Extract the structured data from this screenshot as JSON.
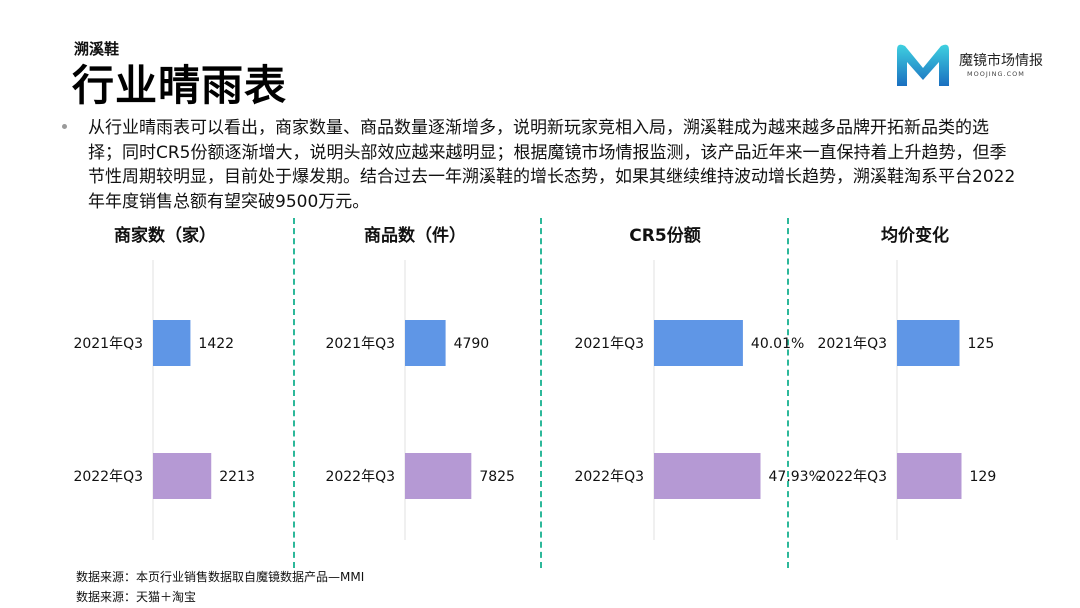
{
  "header": {
    "subtitle": "溯溪鞋",
    "title": "行业晴雨表"
  },
  "logo": {
    "name": "魔镜市场情报",
    "url_text": "MOOJING.COM"
  },
  "body": {
    "text": "从行业晴雨表可以看出，商家数量、商品数量逐渐增多，说明新玩家竞相入局，溯溪鞋成为越来越多品牌开拓新品类的选择；同时CR5份额逐渐增大，说明头部效应越来越明显；根据魔镜市场情报监测，该产品近年来一直保持着上升趋势，但季节性周期较明显，目前处于爆发期。结合过去一年溯溪鞋的增长态势，如果其继续维持波动增长趋势，溯溪鞋淘系平台2022年年度销售总额有望突破9500万元。"
  },
  "colors": {
    "bar_2021": "#5f96e6",
    "bar_2022": "#b599d4",
    "divider": "#2db89a"
  },
  "chart_data": [
    {
      "type": "bar",
      "orientation": "horizontal",
      "title": "商家数（家）",
      "categories": [
        "2021年Q3",
        "2022年Q3"
      ],
      "values": [
        1422,
        2213
      ],
      "value_labels": [
        "1422",
        "2213"
      ],
      "xlim": [
        0,
        3800
      ]
    },
    {
      "type": "bar",
      "orientation": "horizontal",
      "title": "商品数（件）",
      "categories": [
        "2021年Q3",
        "2022年Q3"
      ],
      "values": [
        4790,
        7825
      ],
      "value_labels": [
        "4790",
        "7825"
      ],
      "xlim": [
        0,
        11800
      ]
    },
    {
      "type": "bar",
      "orientation": "horizontal",
      "title": "CR5份额",
      "categories": [
        "2021年Q3",
        "2022年Q3"
      ],
      "values": [
        40.01,
        47.93
      ],
      "value_labels": [
        "40.01%",
        "47.93%"
      ],
      "xlim": [
        0,
        45
      ]
    },
    {
      "type": "bar",
      "orientation": "horizontal",
      "title": "均价变化",
      "categories": [
        "2021年Q3",
        "2022年Q3"
      ],
      "values": [
        125,
        129
      ],
      "value_labels": [
        "125",
        "129"
      ],
      "xlim": [
        0,
        200
      ]
    }
  ],
  "footnotes": [
    "数据来源：本页行业销售数据取自魔镜数据产品—MMI",
    "数据来源：天猫＋淘宝"
  ]
}
